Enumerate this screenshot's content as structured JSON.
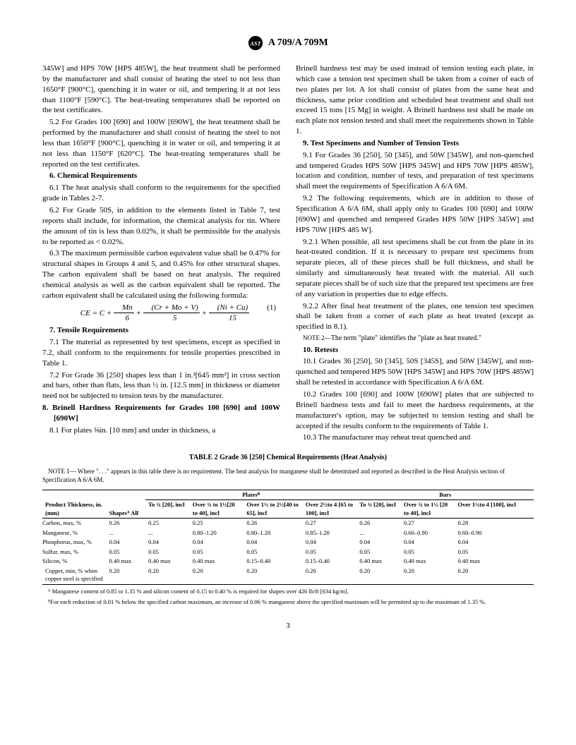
{
  "header": {
    "designation": "A 709/A 709M"
  },
  "col1": {
    "p1": "345W] and HPS 70W [HPS 485W], the heat treatment shall be performed by the manufacturer and shall consist of heating the steel to not less than 1650°F [900°C], quenching it in water or oil, and tempering it at not less than 1100°F [590°C]. The heat-treating temperatures shall be reported on the test certificates.",
    "p2": "5.2 For Grades 100 [690] and 100W [690W], the heat treatment shall be performed by the manufacturer and shall consist of heating the steel to not less than 1650°F [900°C], quenching it in water or oil, and tempering it at not less than 1150°F [620°C]. The heat-treating temperatures shall be reported on the test certificates.",
    "s6": "6. Chemical Requirements",
    "p3": "6.1 The heat analysis shall conform to the requirements for the specified grade in Tables 2-7.",
    "p4": "6.2 For Grade 50S, in addition to the elements listed in Table 7, test reports shall include, for information, the chemical analysis for tin. Where the amount of tin is less than 0.02%, it shall be permissible for the analysis to be reported as < 0.02%.",
    "p5": "6.3 The maximum permissible carbon equivalent value shall be 0.47% for structural shapes in Groups 4 and 5, and 0.45% for other structural shapes. The carbon equivalent shall be based on heat analysis. The required chemical analysis as well as the carbon equivalent shall be reported. The carbon equivalent shall be calculated using the following formula:",
    "formula_lhs": "CE = C +",
    "formula_rhs": "(1)",
    "s7": "7. Tensile Requirements",
    "p6": "7.1 The material as represented by test specimens, except as specified in 7.2, shall conform to the requirements for tensile properties prescribed in Table 1.",
    "p7": "7.2 For Grade 36 [250] shapes less than 1 in.²[645 mm²] in cross section and bars, other than flats, less than ½ in. [12.5 mm] in thickness or diameter need not be subjected to tension tests by the manufacturer.",
    "s8": "8. Brinell Hardness Requirements for Grades 100 [690] and 100W [690W]",
    "p8": "8.1 For plates ⅜in. [10 mm] and under in thickness, a"
  },
  "col2": {
    "p1": "Brinell hardness test may be used instead of tension testing each plate, in which case a tension test specimen shall be taken from a corner of each of two plates per lot. A lot shall consist of plates from the same heat and thickness, same prior condition and scheduled heat treatment and shall not exceed 15 tons [15 Mg] in weight. A Brinell hardness test shall be made on each plate not tension tested and shall meet the requirements shown in Table 1.",
    "s9": "9. Test Specimens and Number of Tension Tests",
    "p2": "9.1 For Grades 36 [250], 50 [345], and 50W [345W], and non-quenched and tempered Grades HPS 50W [HPS 345W] and HPS 70W [HPS 485W], location and condition, number of tests, and preparation of test specimens shall meet the requirements of Specification A 6/A 6M.",
    "p3": "9.2 The following requirements, which are in addition to those of Specification A 6/A 6M, shall apply only to Grades 100 [690] and 100W [690W] and quenched and tempered Grades HPS 50W [HPS 345W] and HPS 70W [HPS 485 W].",
    "p4": "9.2.1 When possible, all test specimens shall be cut from the plate in its heat-treated condition. If it is necessary to prepare test specimens from separate pieces, all of these pieces shall be full thickness, and shall be similarly and simultaneously heat treated with the material. All such separate pieces shall be of such size that the prepared test specimens are free of any variation in properties due to edge effects.",
    "p5": "9.2.2 After final heat treatment of the plates, one tension test specimen shall be taken from a corner of each plate as heat treated (except as specified in 8.1).",
    "note2_label": "NOTE 2—",
    "note2": "The term \"plate\" identifies the \"plate as heat treated.\"",
    "s10": "10. Retests",
    "p6": "10.1 Grades 36 [250], 50 [345], 50S [345S], and 50W [345W], and non-quenched and tempered HPS 50W [HPS 345W] and HPS 70W [HPS 485W] shall be retested in accordance with Specification A 6/A 6M.",
    "p7": "10.2 Grades 100 [690] and 100W [690W] plates that are subjected to Brinell hardness tests and fail to meet the hardness requirements, at the manufacturer's option, may be subjected to tension testing and shall be accepted if the results conform to the requirements of Table 1.",
    "p8": "10.3 The manufacturer may reheat treat quenched and"
  },
  "table": {
    "title": "TABLE 2  Grade 36 [250] Chemical Requirements (Heat Analysis)",
    "note1_label": "NOTE 1—",
    "note1": " Where \". . .\" appears in this table there is no requirement. The heat analysis for manganese shall be determined and reported as described in the Heat Analysis section of Specification A 6/A 6M.",
    "head_product": "Product Thickness, in. (mm)",
    "head_shapes": "Shapesᴬ All",
    "head_plates": "Platesᴮ",
    "head_bars": "Bars",
    "cols": {
      "p1": "To ¾ [20], incl",
      "p2": "Over ¾ to 1½[20 to 40], incl",
      "p3": "Over 1½ to 2½[40 to 65], incl",
      "p4": "Over 2½to 4 [65 to 100], incl",
      "b1": "To ¾ [20], incl",
      "b2": "Over ¾ to 1½ [20 to 40], incl",
      "b3": "Over 1½to 4 [100], incl"
    },
    "rows": [
      {
        "label": "Carbon, max, %",
        "shapes": "0.26",
        "p1": "0.25",
        "p2": "0.25",
        "p3": "0.26",
        "p4": "0.27",
        "b1": "0.26",
        "b2": "0.27",
        "b3": "0.28"
      },
      {
        "label": "Manganese, %",
        "shapes": "...",
        "p1": "...",
        "p2": "0.80–1.20",
        "p3": "0.80–1.20",
        "p4": "0.85–1.20",
        "b1": "...",
        "b2": "0.60–0.90",
        "b3": "0.60–0.90"
      },
      {
        "label": "Phosphorus, max, %",
        "shapes": "0.04",
        "p1": "0.04",
        "p2": "0.04",
        "p3": "0.04",
        "p4": "0.04",
        "b1": "0.04",
        "b2": "0.04",
        "b3": "0.04"
      },
      {
        "label": "Sulfur, max, %",
        "shapes": "0.05",
        "p1": "0.05",
        "p2": "0.05",
        "p3": "0.05",
        "p4": "0.05",
        "b1": "0.05",
        "b2": "0.05",
        "b3": "0.05"
      },
      {
        "label": "Silicon, %",
        "shapes": "0.40 max",
        "p1": "0.40 max",
        "p2": "0.40 max",
        "p3": "0.15–0.40",
        "p4": "0.15–0.40",
        "b1": "0.40 max",
        "b2": "0.40 max",
        "b3": "0.40 max"
      },
      {
        "label": "Copper, min, % when copper steel is specified",
        "shapes": "0.20",
        "p1": "0.20",
        "p2": "0.20",
        "p3": "0.20",
        "p4": "0.20",
        "b1": "0.20",
        "b2": "0.20",
        "b3": "0.20"
      }
    ],
    "footA": "ᴬ Manganese content of 0.85 to 1.35 % and silicon content of 0.15 to 0.40 % is required for shapes over 426 lb/ft [634 kg/m].",
    "footB": "ᴮFor each reduction of 0.01 % below the specified carbon maximum, an increase of 0.06 % manganese above the specified maximum will be permitted up to the maximum of 1.35 %."
  },
  "pagenum": "3"
}
